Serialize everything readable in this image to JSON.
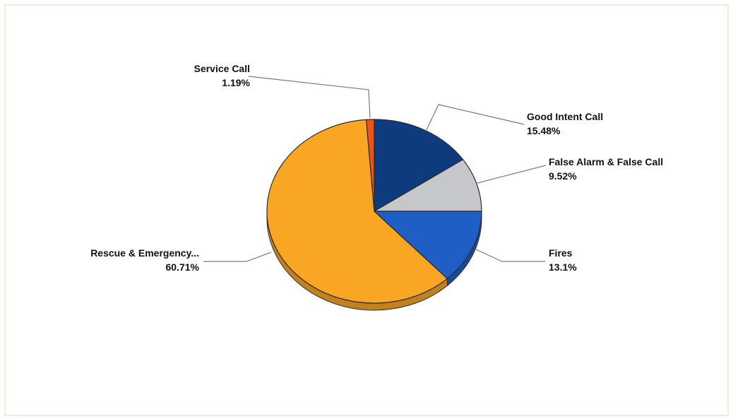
{
  "chart_data": {
    "type": "pie",
    "slices": [
      {
        "label": "Good Intent Call",
        "value": 15.48,
        "display": "15.48%",
        "color": "#0d3b7e"
      },
      {
        "label": "False Alarm & False Call",
        "value": 9.52,
        "display": "9.52%",
        "color": "#c6c7cb"
      },
      {
        "label": "Fires",
        "value": 13.1,
        "display": "13.1%",
        "color": "#1f5fc5"
      },
      {
        "label": "Rescue & Emergency...",
        "value": 60.71,
        "display": "60.71%",
        "color": "#f9a624"
      },
      {
        "label": "Service Call",
        "value": 1.19,
        "display": "1.19%",
        "color": "#e8541b"
      }
    ],
    "start_angle": "12 o'clock",
    "direction": "clockwise",
    "style": "3d",
    "legend": "none",
    "data_labels": "outside with leader lines"
  }
}
